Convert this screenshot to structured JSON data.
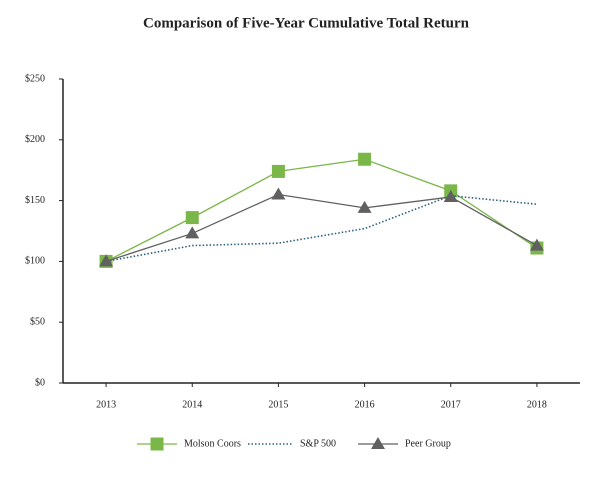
{
  "chart_data": {
    "type": "line",
    "title": "Comparison of Five-Year Cumulative Total Return",
    "categories": [
      "2013",
      "2014",
      "2015",
      "2016",
      "2017",
      "2018"
    ],
    "series": [
      {
        "name": "Molson Coors",
        "color": "#7ab648",
        "marker": "square",
        "linestyle": "solid",
        "values": [
          100,
          136,
          174,
          184,
          158,
          111
        ]
      },
      {
        "name": "S&P 500",
        "color": "#2b6280",
        "marker": "none",
        "linestyle": "dotted",
        "values": [
          100,
          113,
          115,
          127,
          154,
          147
        ]
      },
      {
        "name": "Peer Group",
        "color": "#606060",
        "marker": "triangle",
        "linestyle": "solid",
        "values": [
          100,
          123,
          155,
          144,
          153,
          113
        ]
      }
    ],
    "ylim": [
      0,
      250
    ],
    "yticks": [
      {
        "value": 0,
        "label": "$0"
      },
      {
        "value": 50,
        "label": "$50"
      },
      {
        "value": 100,
        "label": "$100"
      },
      {
        "value": 150,
        "label": "$150"
      },
      {
        "value": 200,
        "label": "$200"
      },
      {
        "value": 250,
        "label": "$250"
      }
    ],
    "grid": false,
    "legend": "bottom"
  }
}
